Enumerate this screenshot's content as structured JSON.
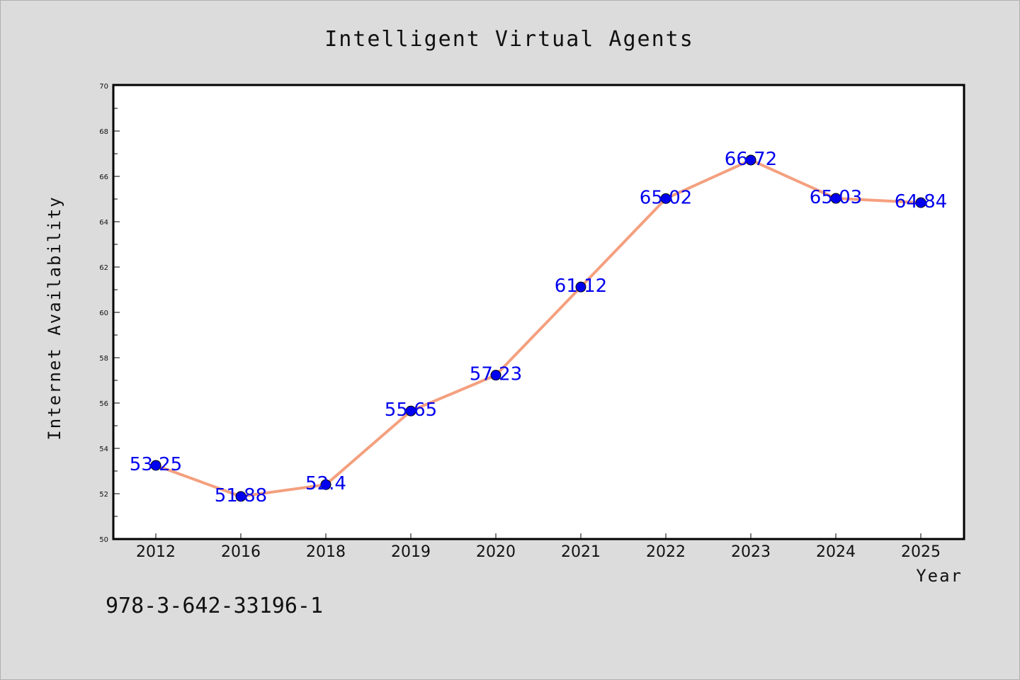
{
  "chart_data": {
    "type": "line",
    "title": "Intelligent Virtual Agents",
    "xlabel": "Year",
    "ylabel": "Internet Availability",
    "categories": [
      "2012",
      "2016",
      "2018",
      "2019",
      "2020",
      "2021",
      "2022",
      "2023",
      "2024",
      "2025"
    ],
    "series": [
      {
        "values": [
          53.25,
          51.88,
          52.4,
          55.65,
          57.23,
          61.12,
          65.02,
          66.72,
          65.03,
          64.84
        ]
      }
    ],
    "data_labels": [
      "53.25",
      "51.88",
      "52.4",
      "55.65",
      "57.23",
      "61.12",
      "65.02",
      "66.72",
      "65.03",
      "64.84"
    ],
    "ylim": [
      50,
      70
    ],
    "yticks": [
      50,
      52,
      54,
      56,
      58,
      60,
      62,
      64,
      66,
      68,
      70
    ],
    "grid": false,
    "line_color": "#f4a07f",
    "marker_color": "#0000ee",
    "label_color": "#0000ee",
    "background": "#dcdcdc",
    "plot_background": "#ffffff"
  },
  "annotation": "978-3-642-33196-1"
}
